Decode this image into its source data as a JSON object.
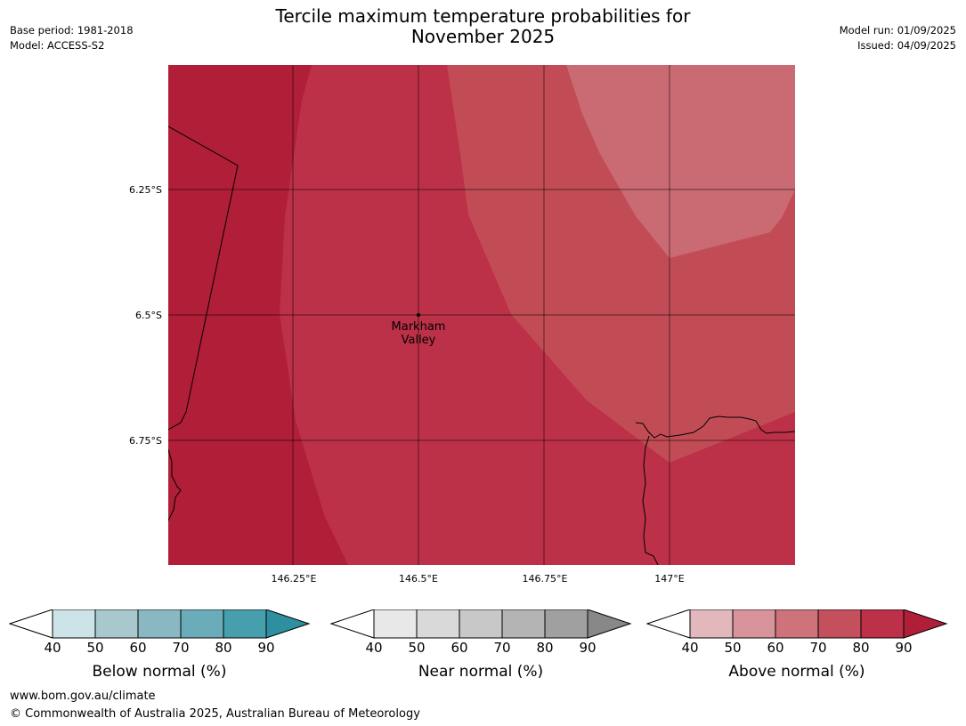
{
  "title": {
    "line1": "Tercile maximum temperature probabilities for",
    "line2": "November 2025"
  },
  "meta_left": {
    "base_period": "Base period: 1981-2018",
    "model": "Model: ACCESS-S2"
  },
  "meta_right": {
    "model_run": "Model run: 01/09/2025",
    "issued": "Issued: 04/09/2025"
  },
  "map": {
    "lat_labels": [
      "6.25°S",
      "6.5°S",
      "6.75°S"
    ],
    "lon_labels": [
      "146.25°E",
      "146.5°E",
      "146.75°E",
      "147°E"
    ],
    "place": {
      "line1": "Markham",
      "line2": "Valley"
    },
    "colors": {
      "band_90": "#b01e38",
      "band_80": "#bc3148",
      "band_70": "#c24c56",
      "band_60": "#ca6b74"
    }
  },
  "colorbars": [
    {
      "label": "Below normal (%)",
      "ticks": [
        "40",
        "50",
        "60",
        "70",
        "80",
        "90"
      ],
      "colors": [
        "#cce3e8",
        "#a8c8cd",
        "#8ab8c2",
        "#6aacb9",
        "#479fae",
        "#2d8fa0"
      ]
    },
    {
      "label": "Near normal (%)",
      "ticks": [
        "40",
        "50",
        "60",
        "70",
        "80",
        "90"
      ],
      "colors": [
        "#e8e8e8",
        "#d9d9d9",
        "#c8c8c8",
        "#b4b4b4",
        "#a0a0a0",
        "#888888"
      ]
    },
    {
      "label": "Above normal (%)",
      "ticks": [
        "40",
        "50",
        "60",
        "70",
        "80",
        "90"
      ],
      "colors": [
        "#e2b8bd",
        "#d8939b",
        "#cf737b",
        "#c44f5d",
        "#bc3148",
        "#b01e38"
      ]
    }
  ],
  "footer": {
    "url": "www.bom.gov.au/climate",
    "copyright": "© Commonwealth of Australia 2025, Australian Bureau of Meteorology"
  }
}
